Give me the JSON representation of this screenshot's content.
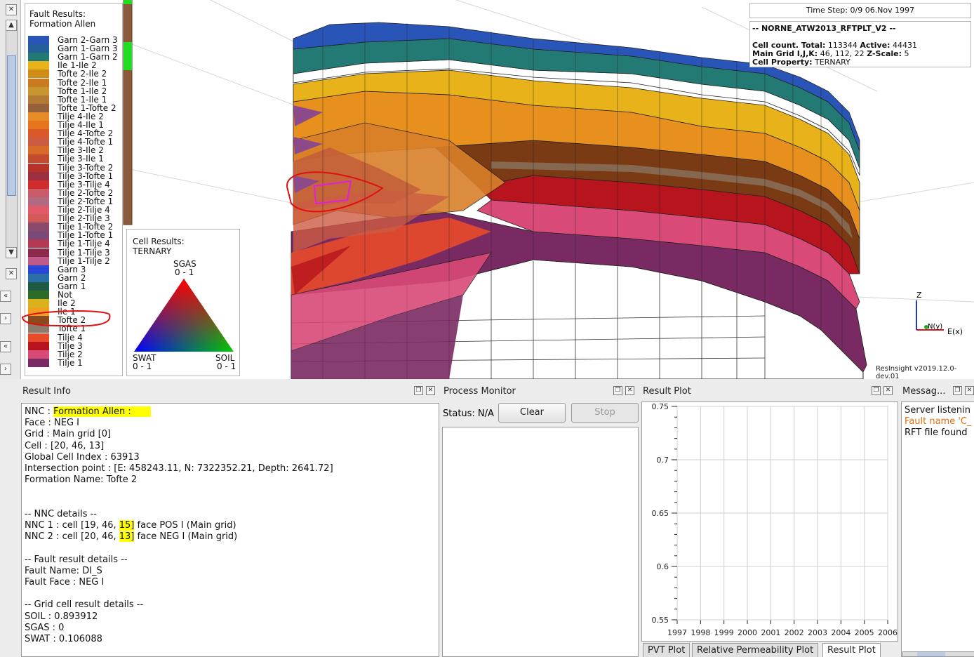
{
  "fault_legend": {
    "title_line1": "Fault Results:",
    "title_line2": "Formation Allen",
    "items": [
      {
        "label": "Garn 2-Garn 3",
        "color": "#2a55b8"
      },
      {
        "label": "Garn 1-Garn 3",
        "color": "#245f9a"
      },
      {
        "label": "Garn 1-Garn 2",
        "color": "#237a74"
      },
      {
        "label": "Ile 1-Ile 2",
        "color": "#e8b21b"
      },
      {
        "label": "Tofte 2-Ile 2",
        "color": "#cf8c17"
      },
      {
        "label": "Tofte 2-Ile 1",
        "color": "#c77a1f"
      },
      {
        "label": "Tofte 1-Ile 2",
        "color": "#c7962f"
      },
      {
        "label": "Tofte 1-Ile 1",
        "color": "#b47a35"
      },
      {
        "label": "Tofte 1-Tofte 2",
        "color": "#94613b"
      },
      {
        "label": "Tilje 4-Ile 2",
        "color": "#e68b26"
      },
      {
        "label": "Tilje 4-Ile 1",
        "color": "#e6741f"
      },
      {
        "label": "Tilje 4-Tofte 2",
        "color": "#d9592a"
      },
      {
        "label": "Tilje 4-Tofte 1",
        "color": "#cc5b42"
      },
      {
        "label": "Tilje 3-Ile 2",
        "color": "#d86a2a"
      },
      {
        "label": "Tilje 3-Ile 1",
        "color": "#c24a2d"
      },
      {
        "label": "Tilje 3-Tofte 2",
        "color": "#b8322a"
      },
      {
        "label": "Tilje 3-Tofte 1",
        "color": "#9c3040"
      },
      {
        "label": "Tilje 3-Tilje 4",
        "color": "#d12b2b"
      },
      {
        "label": "Tilje 2-Tofte 2",
        "color": "#c85a6a"
      },
      {
        "label": "Tilje 2-Tofte 1",
        "color": "#b26a82"
      },
      {
        "label": "Tilje 2-Tilje 4",
        "color": "#e25a6a"
      },
      {
        "label": "Tilje 2-Tilje 3",
        "color": "#d45a5a"
      },
      {
        "label": "Tilje 1-Tofte 2",
        "color": "#8c4a6a"
      },
      {
        "label": "Tilje 1-Tofte 1",
        "color": "#7a4a78"
      },
      {
        "label": "Tilje 1-Tilje 4",
        "color": "#b33a52"
      },
      {
        "label": "Tilje 1-Tilje 3",
        "color": "#8c2a4a"
      },
      {
        "label": "Tilje 1-Tilje 2",
        "color": "#c05a8a"
      },
      {
        "label": "Garn 3",
        "color": "#2b47d6"
      },
      {
        "label": "Garn 2",
        "color": "#2a6fa8"
      },
      {
        "label": "Garn 1",
        "color": "#1f5a45"
      },
      {
        "label": "Not",
        "color": "#2d6b2a"
      },
      {
        "label": "Ile 2",
        "color": "#d9b21c"
      },
      {
        "label": "Ile 1",
        "color": "#f0a020"
      },
      {
        "label": "Tofte 2",
        "color": "#8a4a1e"
      },
      {
        "label": "Tofte 1",
        "color": "#8c7a6a"
      },
      {
        "label": "Tilje 4",
        "color": "#e84a2a"
      },
      {
        "label": "Tilje 3",
        "color": "#b8141e"
      },
      {
        "label": "Tilje 2",
        "color": "#d94a78"
      },
      {
        "label": "Tilje 1",
        "color": "#7a2a62"
      }
    ]
  },
  "cell_legend": {
    "title_line1": "Cell Results:",
    "title_line2": "TERNARY",
    "top_label": "SGAS",
    "top_range": "0 - 1",
    "left_label": "SWAT",
    "left_range": "0 - 1",
    "right_label": "SOIL",
    "right_range": "0 - 1"
  },
  "timestep": "Time Step: 0/9 06.Nov 1997",
  "case_info": {
    "title": "-- NORNE_ATW2013_RFTPLT_V2 --",
    "cell_count_label": "Cell count. Total:",
    "cell_count_total": "113344",
    "active_label": "Active:",
    "active_value": "44431",
    "main_grid_label": "Main Grid I,J,K:",
    "main_grid_value": "46, 112, 22",
    "zscale_label": "Z-Scale:",
    "zscale_value": "5",
    "cell_property_label": "Cell Property:",
    "cell_property_value": "TERNARY"
  },
  "axis": {
    "z": "Z",
    "n": "N(y)",
    "e": "E(x)"
  },
  "version": "ResInsight v2019.12.0-dev.01",
  "result_info": {
    "title": "Result Info",
    "nnc_prefix": "NNC : ",
    "nnc_value": "Formation Allen :",
    "lines": [
      "Face : NEG I",
      "Grid : Main grid [0]",
      "Cell : [20, 46, 13]",
      "Global Cell Index : 63913",
      "Intersection point : [E: 458243.11, N: 7322352.21, Depth: 2641.72]",
      "Formation Name: Tofte 2",
      "",
      "",
      "-- NNC details --"
    ],
    "nnc1_pre": "NNC 1 : cell [19, 46, ",
    "nnc1_hl": "15]",
    "nnc1_post": " face POS I (Main grid)",
    "nnc2_pre": "NNC 2 : cell [20, 46, ",
    "nnc2_hl": "13]",
    "nnc2_post": " face NEG I (Main grid)",
    "lines2": [
      "",
      "-- Fault result details --",
      "Fault Name: DI_S",
      "Fault Face : NEG I",
      "",
      "-- Grid cell result details --",
      "SOIL : 0.893912",
      "SGAS : 0",
      "SWAT : 0.106088"
    ]
  },
  "process_monitor": {
    "title": "Process Monitor",
    "status": "Status: N/A",
    "clear": "Clear",
    "stop": "Stop"
  },
  "result_plot": {
    "title": "Result Plot",
    "tabs": [
      "PVT Plot",
      "Relative Permeability Plot",
      "Result Plot"
    ]
  },
  "messages": {
    "title": "Messag...",
    "line1": "Server listenin",
    "line2": "Fault name 'C_",
    "line3": "RFT file found"
  },
  "chart_data": {
    "type": "line",
    "x_ticks": [
      "1997",
      "1998",
      "1999",
      "2000",
      "2001",
      "2002",
      "2003",
      "2004",
      "2005",
      "2006"
    ],
    "y_ticks": [
      "0.75",
      "0.7",
      "0.65",
      "0.6",
      "0.55"
    ],
    "xlim": [
      1997,
      2006
    ],
    "ylim": [
      0.55,
      0.75
    ],
    "series": [],
    "grid": true
  },
  "colors": {
    "highlight": "#ffff00",
    "annotation": "#e01010",
    "selection": "#e020e0",
    "warning_text": "#e07010"
  }
}
